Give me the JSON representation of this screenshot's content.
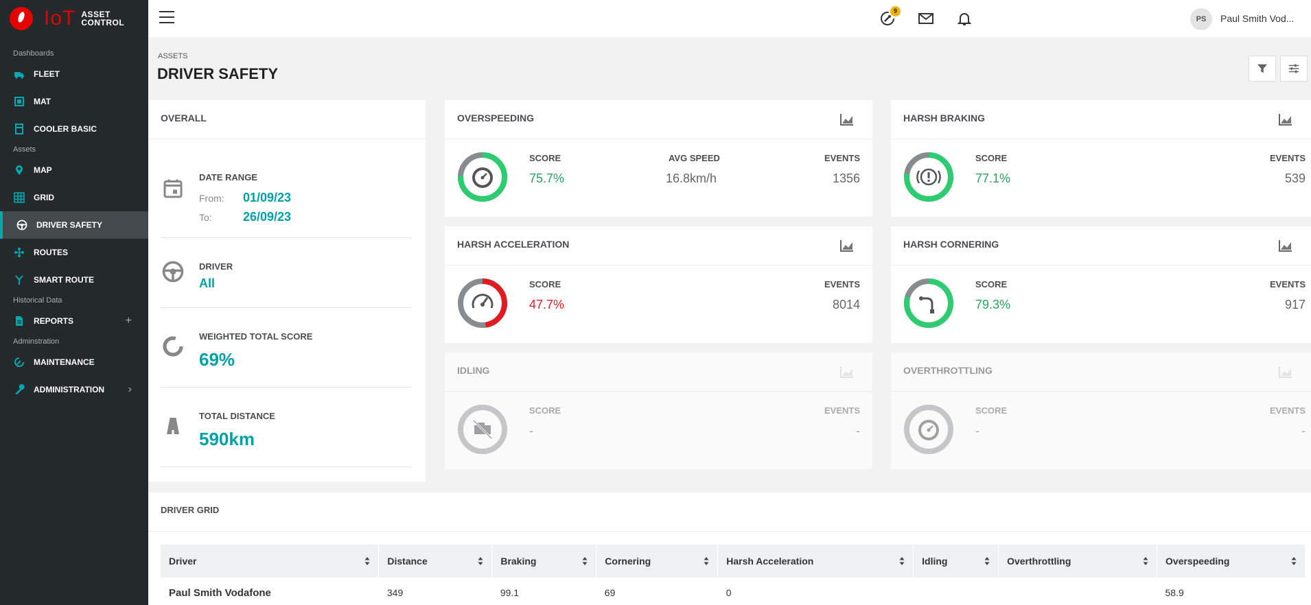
{
  "brand": {
    "name": "IoT",
    "sub_line1": "ASSET",
    "sub_line2": "CONTROL"
  },
  "sidebar": {
    "sections": [
      {
        "label": "Dashboards",
        "items": [
          {
            "label": "FLEET",
            "icon": "truck-icon"
          },
          {
            "label": "MAT",
            "icon": "device-icon"
          },
          {
            "label": "COOLER BASIC",
            "icon": "cooler-icon"
          }
        ]
      },
      {
        "label": "Assets",
        "items": [
          {
            "label": "MAP",
            "icon": "map-pin-icon"
          },
          {
            "label": "GRID",
            "icon": "grid-icon"
          },
          {
            "label": "DRIVER SAFETY",
            "icon": "steering-wheel-icon",
            "active": true
          }
        ]
      },
      {
        "label": "",
        "items": [
          {
            "label": "ROUTES",
            "icon": "routes-icon"
          },
          {
            "label": "SMART ROUTE",
            "icon": "smart-route-icon"
          }
        ]
      },
      {
        "label": "Historical Data",
        "items": [
          {
            "label": "REPORTS",
            "icon": "report-icon",
            "trail": "+"
          }
        ]
      },
      {
        "label": "Adminstration",
        "items": [
          {
            "label": "MAINTENANCE",
            "icon": "maintenance-icon"
          },
          {
            "label": "ADMINISTRATION",
            "icon": "wrench-icon",
            "trail": "›"
          }
        ]
      }
    ]
  },
  "topbar": {
    "badge_count": "9",
    "avatar_initials": "PS",
    "username": "Paul Smith Vod..."
  },
  "header": {
    "breadcrumb": "ASSETS",
    "title": "DRIVER SAFETY"
  },
  "overall": {
    "title": "OVERALL",
    "date_range_label": "DATE RANGE",
    "from_label": "From:",
    "from_value": "01/09/23",
    "to_label": "To:",
    "to_value": "26/09/23",
    "driver_label": "DRIVER",
    "driver_value": "All",
    "weighted_label": "WEIGHTED TOTAL SCORE",
    "weighted_value": "69%",
    "distance_label": "TOTAL DISTANCE",
    "distance_value": "590km"
  },
  "cards": {
    "overspeeding": {
      "title": "OVERSPEEDING",
      "score_label": "SCORE",
      "score": "75.7%",
      "score_fraction": 0.757,
      "avg_label": "AVG SPEED",
      "avg_value": "16.8km/h",
      "events_label": "EVENTS",
      "events": "1356"
    },
    "harsh_braking": {
      "title": "HARSH BRAKING",
      "score_label": "SCORE",
      "score": "77.1%",
      "score_fraction": 0.771,
      "events_label": "EVENTS",
      "events": "539"
    },
    "harsh_acceleration": {
      "title": "HARSH ACCELERATION",
      "score_label": "SCORE",
      "score": "47.7%",
      "score_fraction": 0.477,
      "events_label": "EVENTS",
      "events": "8014"
    },
    "harsh_cornering": {
      "title": "HARSH CORNERING",
      "score_label": "SCORE",
      "score": "79.3%",
      "score_fraction": 0.793,
      "events_label": "EVENTS",
      "events": "917"
    },
    "idling": {
      "title": "IDLING",
      "score_label": "SCORE",
      "score": "-",
      "events_label": "EVENTS",
      "events": "-"
    },
    "overthrottling": {
      "title": "OVERTHROTTLING",
      "score_label": "SCORE",
      "score": "-",
      "events_label": "EVENTS",
      "events": "-"
    }
  },
  "colors": {
    "accent": "#00a0a8",
    "good": "#24a35a",
    "bad": "#e01b24",
    "ring_rest": "#878c90",
    "sidebar": "#24292c"
  },
  "grid": {
    "title": "DRIVER GRID",
    "columns": [
      "Driver",
      "Distance",
      "Braking",
      "Cornering",
      "Harsh Acceleration",
      "Idling",
      "Overthrottling",
      "Overspeeding"
    ],
    "rows": [
      [
        "Paul Smith Vodafone",
        "349",
        "99.1",
        "69",
        "0",
        "",
        "",
        "58.9"
      ]
    ]
  }
}
